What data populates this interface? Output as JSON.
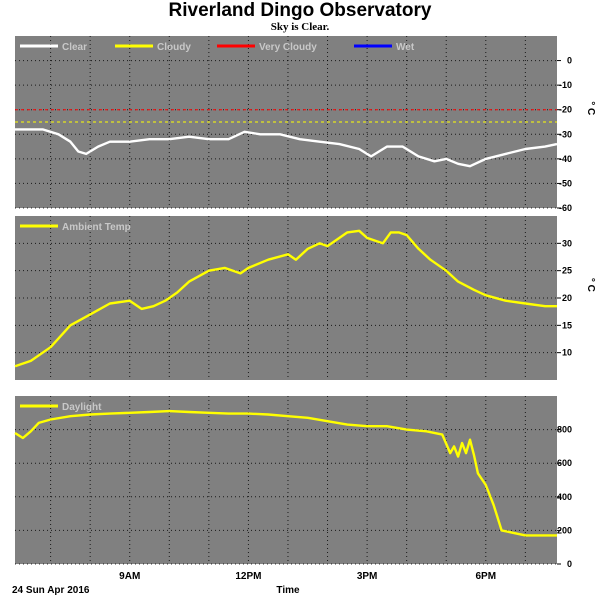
{
  "title": "Riverland Dingo Observatory",
  "subtitle": "Sky is Clear.",
  "colors": {
    "background": "#ffffff",
    "panel": "#808080",
    "grid": "#000000",
    "clear": "#ffffff",
    "cloudy": "#ffff00",
    "very_cloudy": "#ff0000",
    "wet": "#0000ff"
  },
  "chart_data": [
    {
      "type": "line",
      "unit": "°C",
      "x_unit": "hours",
      "xlim": [
        6.1,
        19.8
      ],
      "ylim": [
        -60,
        10
      ],
      "yticks": [
        0,
        -10,
        -20,
        -30,
        -40,
        -50,
        -60
      ],
      "legend": [
        {
          "name": "Clear",
          "color": "#ffffff"
        },
        {
          "name": "Cloudy",
          "color": "#ffff00"
        },
        {
          "name": "Very Cloudy",
          "color": "#ff0000"
        },
        {
          "name": "Wet",
          "color": "#0000ff"
        }
      ],
      "thresholds": [
        {
          "name": "Very Cloudy",
          "value": -20,
          "color": "#ff0000"
        },
        {
          "name": "Cloudy",
          "value": -25,
          "color": "#ffff00"
        }
      ],
      "series": [
        {
          "name": "Clear",
          "color": "#ffffff",
          "x": [
            6.1,
            6.8,
            7.2,
            7.5,
            7.7,
            7.9,
            8.2,
            8.5,
            9.0,
            9.5,
            10.0,
            10.5,
            11.0,
            11.5,
            11.9,
            12.3,
            12.8,
            13.3,
            13.8,
            14.3,
            14.8,
            15.1,
            15.5,
            15.9,
            16.3,
            16.7,
            17.0,
            17.3,
            17.6,
            18.0,
            18.5,
            19.0,
            19.5,
            19.8
          ],
          "y": [
            -28,
            -28,
            -30,
            -33,
            -37,
            -38,
            -35,
            -33,
            -33,
            -32,
            -32,
            -31,
            -32,
            -32,
            -29,
            -30,
            -30,
            -32,
            -33,
            -34,
            -36,
            -39,
            -35,
            -35,
            -39,
            -41,
            -40,
            -42,
            -43,
            -40,
            -38,
            -36,
            -35,
            -34
          ]
        }
      ]
    },
    {
      "type": "line",
      "unit": "°C",
      "x_unit": "hours",
      "xlim": [
        6.1,
        19.8
      ],
      "ylim": [
        5,
        35
      ],
      "yticks": [
        30,
        25,
        20,
        15,
        10
      ],
      "legend": [
        {
          "name": "Ambient Temp",
          "color": "#ffff00"
        }
      ],
      "series": [
        {
          "name": "Ambient Temp",
          "color": "#ffff00",
          "x": [
            6.1,
            6.5,
            7.0,
            7.5,
            8.0,
            8.5,
            9.0,
            9.3,
            9.6,
            9.9,
            10.2,
            10.5,
            11.0,
            11.4,
            11.8,
            12.0,
            12.5,
            13.0,
            13.2,
            13.5,
            13.8,
            14.0,
            14.3,
            14.5,
            14.8,
            15.0,
            15.2,
            15.4,
            15.6,
            15.8,
            16.0,
            16.3,
            16.6,
            17.0,
            17.3,
            17.7,
            18.0,
            18.5,
            19.0,
            19.5,
            19.8
          ],
          "y": [
            7.5,
            8.5,
            11,
            15,
            17,
            19,
            19.5,
            18,
            18.5,
            19.5,
            21,
            23,
            25,
            25.5,
            24.5,
            25.5,
            27,
            28,
            27,
            29,
            30,
            29.5,
            31,
            32,
            32.3,
            31,
            30.5,
            30,
            32,
            32,
            31.5,
            29,
            27,
            25,
            23,
            21.5,
            20.5,
            19.5,
            19,
            18.5,
            18.5
          ]
        }
      ]
    },
    {
      "type": "line",
      "x_unit": "hours",
      "xlim": [
        6.1,
        19.8
      ],
      "ylim": [
        0,
        1000
      ],
      "yticks": [
        800,
        600,
        400,
        200,
        0
      ],
      "legend": [
        {
          "name": "Daylight",
          "color": "#ffff00"
        }
      ],
      "series": [
        {
          "name": "Daylight",
          "color": "#ffff00",
          "x": [
            6.1,
            6.3,
            6.5,
            6.7,
            7.0,
            7.5,
            8.0,
            8.5,
            9.0,
            9.5,
            10.0,
            10.5,
            11.0,
            11.5,
            12.0,
            12.5,
            13.0,
            13.5,
            14.0,
            14.5,
            15.0,
            15.5,
            16.0,
            16.5,
            16.9,
            17.1,
            17.2,
            17.3,
            17.4,
            17.5,
            17.6,
            17.7,
            17.8,
            18.0,
            18.2,
            18.4,
            19.0,
            19.5,
            19.8
          ],
          "y": [
            780,
            750,
            790,
            840,
            860,
            880,
            890,
            895,
            900,
            905,
            910,
            905,
            900,
            895,
            895,
            890,
            880,
            870,
            850,
            830,
            820,
            820,
            800,
            790,
            770,
            660,
            700,
            640,
            720,
            660,
            740,
            650,
            540,
            470,
            350,
            200,
            170,
            170,
            170
          ]
        }
      ]
    }
  ],
  "x_axis": {
    "tick_labels": [
      {
        "label": "9AM",
        "value": 9
      },
      {
        "label": "12PM",
        "value": 12
      },
      {
        "label": "3PM",
        "value": 15
      },
      {
        "label": "6PM",
        "value": 18
      }
    ],
    "xlabel": "Time",
    "date_label": "24 Sun Apr 2016"
  }
}
